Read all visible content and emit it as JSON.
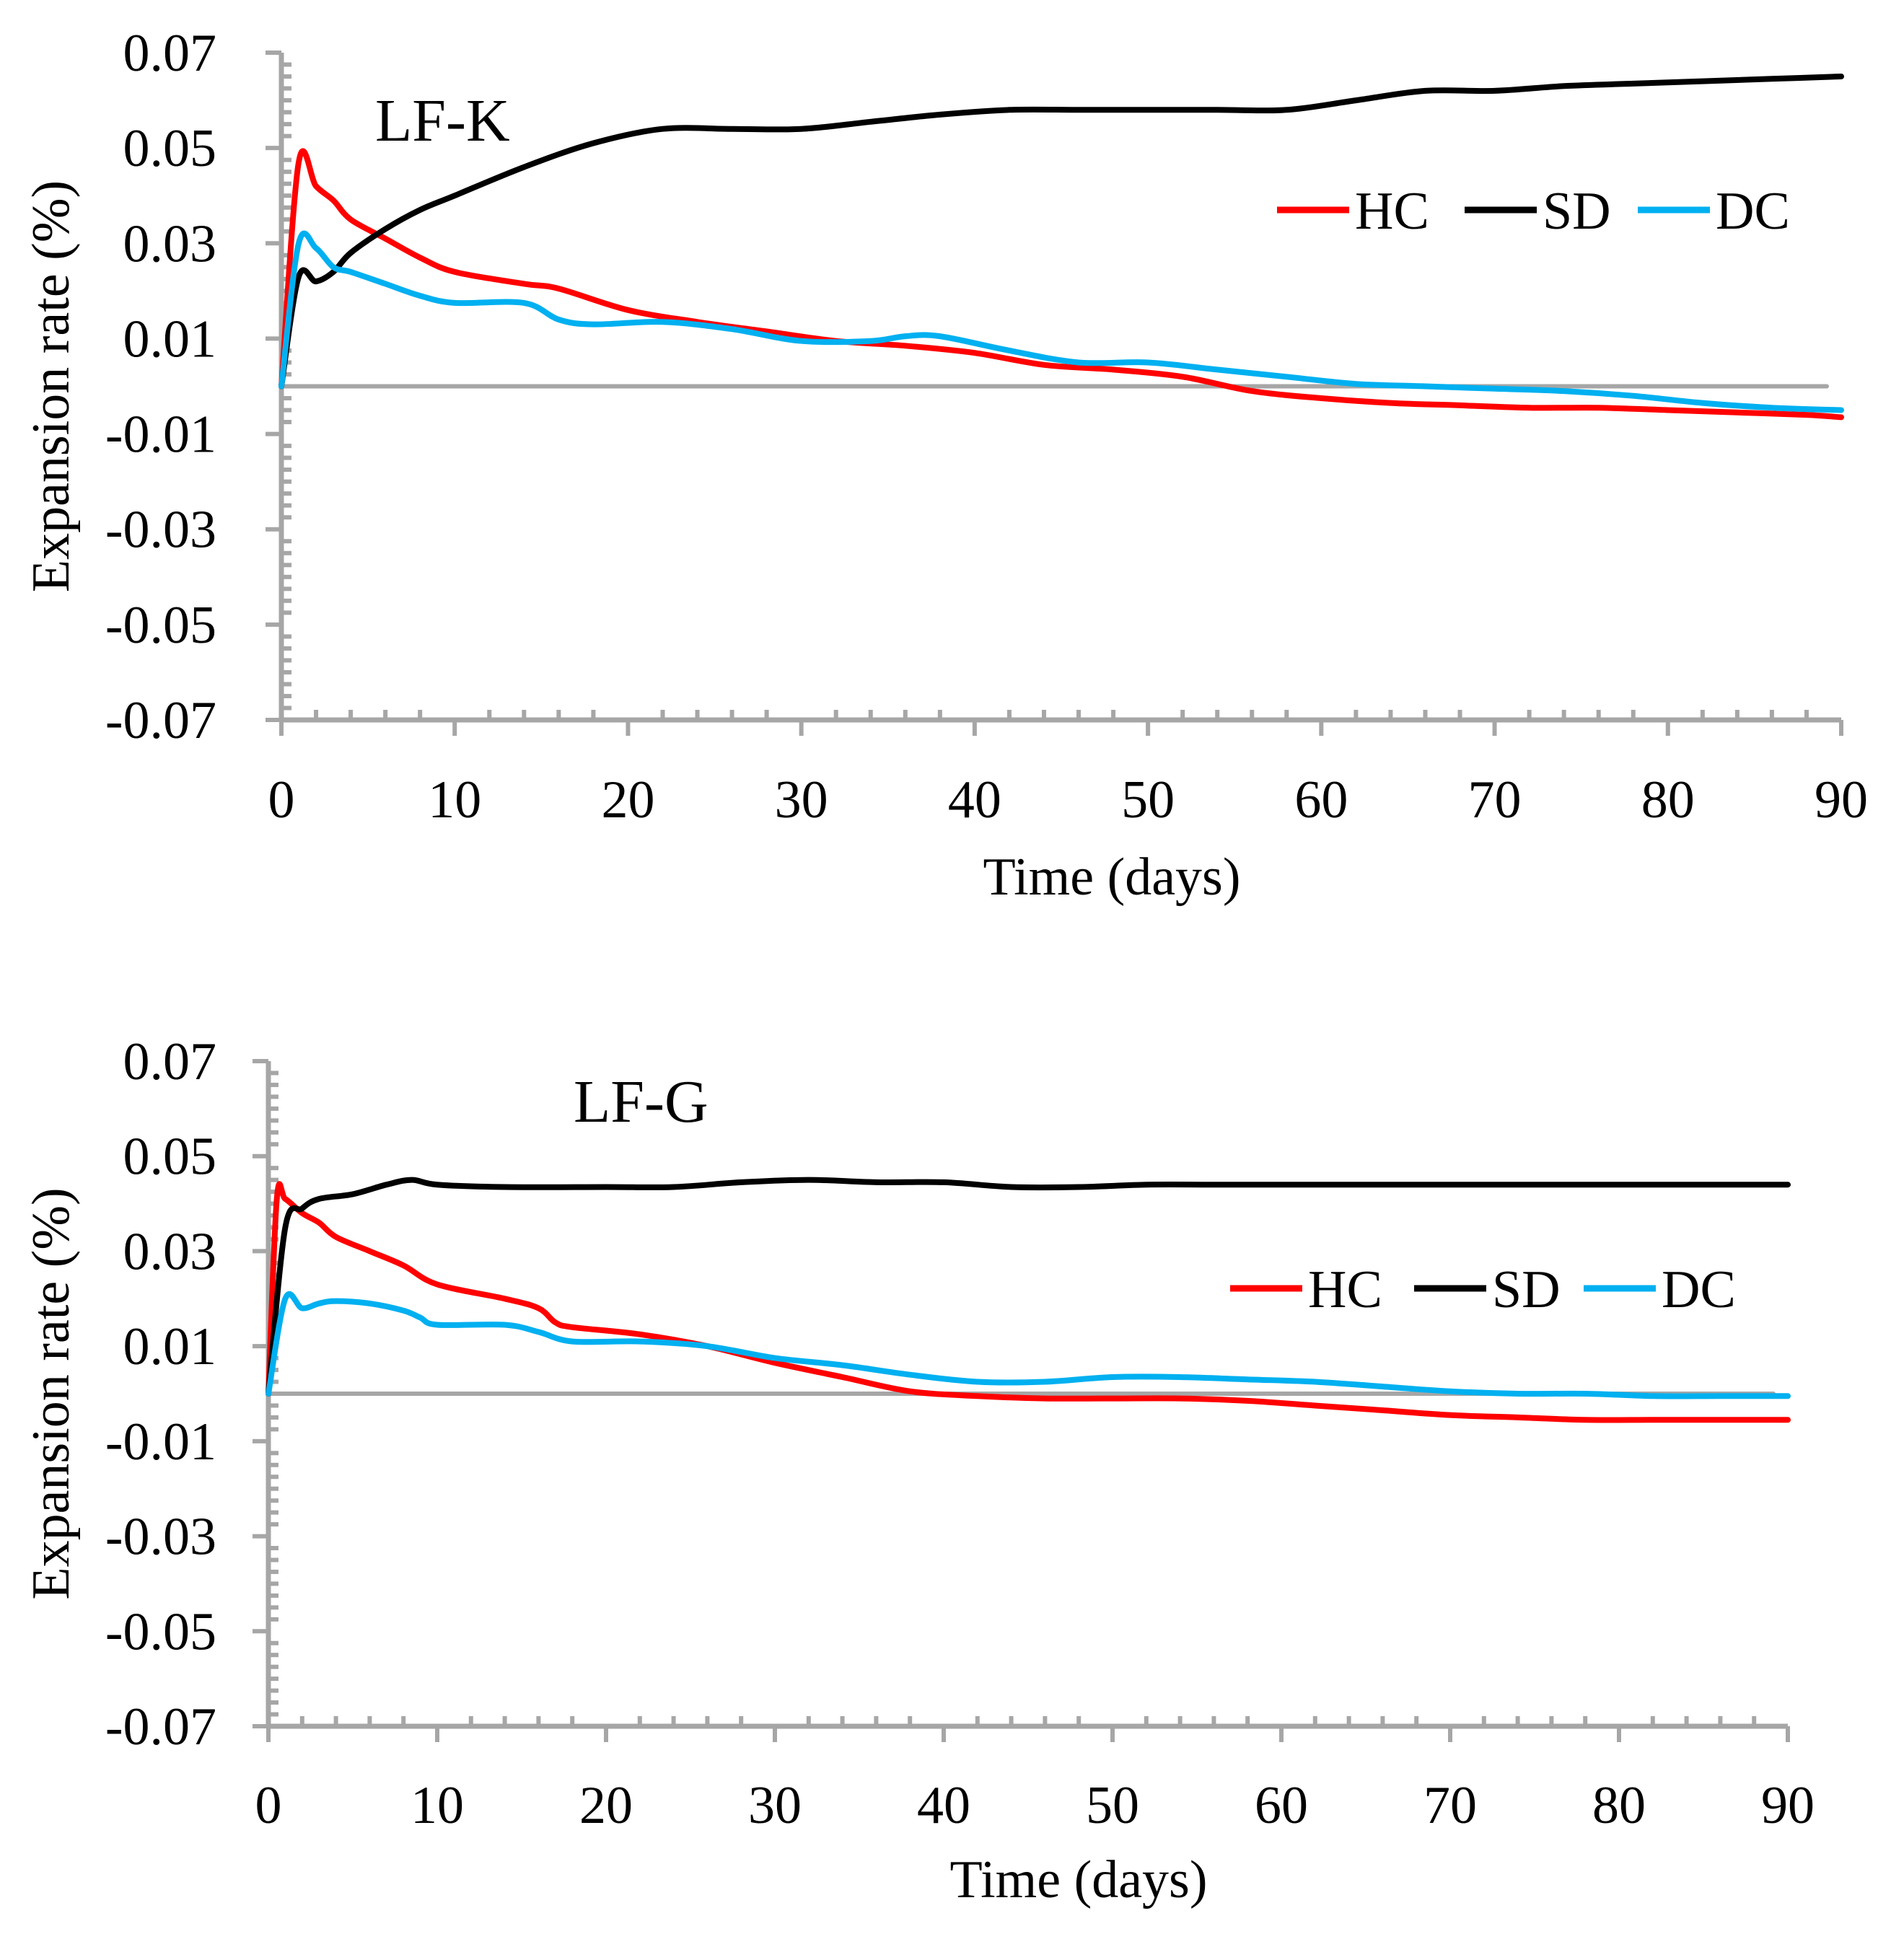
{
  "colors": {
    "HC": "#ff0000",
    "SD": "#000000",
    "DC": "#00b0f0",
    "axis": "#a6a6a6",
    "zero": "#a6a6a6"
  },
  "chart_data": [
    {
      "type": "line",
      "title": "LF-K",
      "xlabel": "Time (days)",
      "ylabel": "Expansion rate (%)",
      "xlim": [
        0,
        90
      ],
      "ylim": [
        -0.07,
        0.07
      ],
      "xticks": [
        "0",
        "10",
        "20",
        "30",
        "40",
        "50",
        "60",
        "70",
        "80",
        "90"
      ],
      "yticks": [
        "0.07",
        "0.05",
        "0.03",
        "0.01",
        "-0.01",
        "-0.03",
        "-0.05",
        "-0.07"
      ],
      "grid": false,
      "legend": "upper-right",
      "series": [
        {
          "name": "HC",
          "x": [
            0,
            1,
            2,
            3,
            4,
            6,
            8,
            10,
            14,
            16,
            20,
            24,
            28,
            32,
            36,
            40,
            44,
            48,
            52,
            56,
            60,
            64,
            68,
            72,
            76,
            80,
            84,
            88,
            90
          ],
          "values": [
            0,
            0.047,
            0.042,
            0.039,
            0.035,
            0.031,
            0.027,
            0.024,
            0.0215,
            0.0205,
            0.016,
            0.0135,
            0.0115,
            0.0095,
            0.0085,
            0.007,
            0.0045,
            0.0035,
            0.002,
            -0.001,
            -0.0025,
            -0.0035,
            -0.004,
            -0.0045,
            -0.0045,
            -0.005,
            -0.0055,
            -0.006,
            -0.0065
          ]
        },
        {
          "name": "SD",
          "x": [
            0,
            1,
            2,
            3,
            4,
            6,
            8,
            10,
            14,
            18,
            22,
            26,
            30,
            34,
            38,
            42,
            46,
            50,
            54,
            58,
            62,
            66,
            70,
            74,
            78,
            82,
            86,
            90
          ],
          "values": [
            0,
            0.023,
            0.022,
            0.024,
            0.028,
            0.033,
            0.037,
            0.04,
            0.046,
            0.051,
            0.054,
            0.054,
            0.054,
            0.0555,
            0.057,
            0.058,
            0.058,
            0.058,
            0.058,
            0.058,
            0.06,
            0.062,
            0.062,
            0.063,
            0.0635,
            0.064,
            0.0645,
            0.065
          ]
        },
        {
          "name": "DC",
          "x": [
            0,
            1,
            2,
            3,
            4,
            6,
            8,
            10,
            14,
            16,
            18,
            22,
            26,
            30,
            34,
            36,
            38,
            42,
            46,
            50,
            54,
            58,
            62,
            66,
            70,
            74,
            78,
            82,
            86,
            90
          ],
          "values": [
            0,
            0.03,
            0.029,
            0.025,
            0.024,
            0.0215,
            0.019,
            0.0175,
            0.0175,
            0.014,
            0.013,
            0.0135,
            0.012,
            0.0095,
            0.0095,
            0.0105,
            0.0105,
            0.0075,
            0.005,
            0.005,
            0.0035,
            0.002,
            0.0005,
            0,
            -0.0005,
            -0.001,
            -0.002,
            -0.0035,
            -0.0045,
            -0.005
          ]
        },
        {
          "name": "zero-line",
          "x": [
            0,
            90
          ],
          "values": [
            0,
            0
          ]
        }
      ]
    },
    {
      "type": "line",
      "title": "LF-G",
      "xlabel": "Time (days)",
      "ylabel": "Expansion rate (%)",
      "xlim": [
        0,
        90
      ],
      "ylim": [
        -0.07,
        0.07
      ],
      "xticks": [
        "0",
        "10",
        "20",
        "30",
        "40",
        "50",
        "60",
        "70",
        "80",
        "90"
      ],
      "yticks": [
        "0.07",
        "0.05",
        "0.03",
        "0.01",
        "-0.01",
        "-0.03",
        "-0.05",
        "-0.07"
      ],
      "grid": false,
      "legend": "upper-right",
      "series": [
        {
          "name": "HC",
          "x": [
            0,
            0.5,
            1,
            2,
            3,
            4,
            6,
            8,
            10,
            14,
            16,
            17,
            18,
            22,
            26,
            30,
            34,
            38,
            42,
            46,
            50,
            54,
            58,
            62,
            66,
            70,
            74,
            78,
            82,
            86,
            90
          ],
          "values": [
            0,
            0.041,
            0.041,
            0.038,
            0.036,
            0.033,
            0.03,
            0.027,
            0.023,
            0.02,
            0.018,
            0.015,
            0.014,
            0.0125,
            0.01,
            0.0065,
            0.0035,
            0.0005,
            -0.0005,
            -0.001,
            -0.001,
            -0.001,
            -0.0015,
            -0.0025,
            -0.0035,
            -0.0045,
            -0.005,
            -0.0055,
            -0.0055,
            -0.0055,
            -0.0055
          ]
        },
        {
          "name": "SD",
          "x": [
            0,
            1,
            2,
            3,
            5,
            7,
            8.5,
            10,
            14,
            20,
            24,
            28,
            32,
            36,
            40,
            44,
            48,
            52,
            56,
            60,
            70,
            80,
            90
          ],
          "values": [
            0,
            0.035,
            0.039,
            0.041,
            0.042,
            0.044,
            0.045,
            0.044,
            0.0435,
            0.0435,
            0.0435,
            0.0445,
            0.045,
            0.0445,
            0.0445,
            0.0435,
            0.0435,
            0.044,
            0.044,
            0.044,
            0.044,
            0.044,
            0.044
          ]
        },
        {
          "name": "DC",
          "x": [
            0,
            1,
            2,
            3,
            4,
            6,
            8,
            9,
            10,
            14,
            16,
            18,
            22,
            26,
            30,
            34,
            38,
            42,
            46,
            50,
            54,
            58,
            62,
            66,
            70,
            74,
            78,
            82,
            86,
            90
          ],
          "values": [
            0,
            0.02,
            0.018,
            0.019,
            0.0195,
            0.019,
            0.0175,
            0.016,
            0.0145,
            0.0145,
            0.013,
            0.011,
            0.011,
            0.01,
            0.0075,
            0.006,
            0.004,
            0.0025,
            0.0025,
            0.0035,
            0.0035,
            0.003,
            0.0025,
            0.0015,
            0.0005,
            0,
            0,
            -0.0005,
            -0.0005,
            -0.0005
          ]
        },
        {
          "name": "zero-line",
          "x": [
            0,
            90
          ],
          "values": [
            0,
            0
          ]
        }
      ]
    }
  ]
}
